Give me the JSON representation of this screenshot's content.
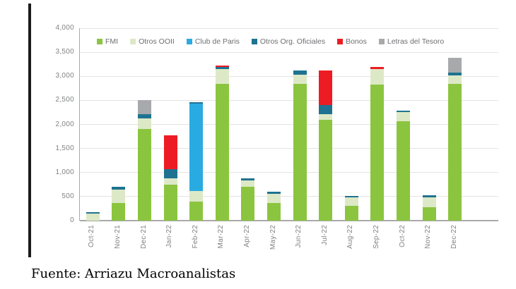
{
  "page": {
    "source_note": "Fuente: Arriazu Macroanalistas"
  },
  "chart_data": {
    "type": "bar",
    "stacked": true,
    "title": "",
    "xlabel": "",
    "ylabel": "",
    "grid": true,
    "legend_position": "top",
    "ylim": [
      0,
      4000
    ],
    "ytick_step": 500,
    "ytick_labels": [
      "0",
      "500",
      "1,000",
      "1,500",
      "2,000",
      "2,500",
      "3,000",
      "3,500",
      "4,000"
    ],
    "categories": [
      "Oct-21",
      "Nov-21",
      "Dec-21",
      "Jan-22",
      "Feb-22",
      "Mar-22",
      "Apr-22",
      "May-22",
      "Jun-22",
      "Jul-22",
      "Aug-22",
      "Sep-22",
      "Oct-22",
      "Nov-22",
      "Dec-22"
    ],
    "series": [
      {
        "name": "FMI",
        "color": "#8bc53f",
        "values": [
          0,
          360,
          1900,
          750,
          390,
          2850,
          700,
          360,
          2840,
          2090,
          310,
          2830,
          2070,
          280,
          2850
        ]
      },
      {
        "name": "Otros OOII",
        "color": "#dde9c6",
        "values": [
          150,
          290,
          230,
          130,
          220,
          300,
          130,
          195,
          200,
          120,
          170,
          320,
          185,
          200,
          170
        ]
      },
      {
        "name": "Club de Paris",
        "color": "#29abe2",
        "values": [
          0,
          0,
          0,
          0,
          1820,
          0,
          0,
          0,
          0,
          0,
          0,
          0,
          0,
          0,
          0
        ]
      },
      {
        "name": "Otros Org. Oficiales",
        "color": "#1f7391",
        "values": [
          30,
          60,
          90,
          190,
          30,
          40,
          50,
          50,
          80,
          200,
          40,
          0,
          30,
          50,
          50
        ]
      },
      {
        "name": "Bonos",
        "color": "#ed1c24",
        "values": [
          0,
          0,
          0,
          710,
          0,
          30,
          0,
          0,
          0,
          710,
          0,
          50,
          0,
          0,
          0
        ]
      },
      {
        "name": "Letras del Tesoro",
        "color": "#a7a9ac",
        "values": [
          0,
          0,
          290,
          0,
          0,
          0,
          0,
          0,
          0,
          0,
          0,
          0,
          0,
          0,
          320
        ]
      }
    ]
  }
}
